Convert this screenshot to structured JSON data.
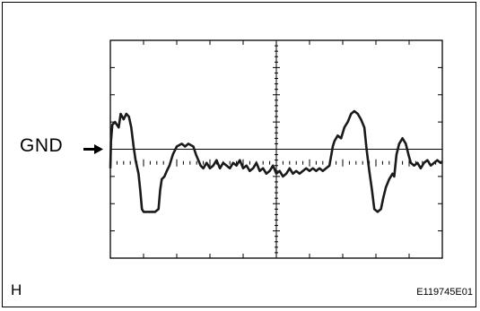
{
  "labels": {
    "ground": "GND",
    "corner": "H",
    "figure_code": "E119745E01"
  },
  "colors": {
    "trace": "#1a1a1a",
    "grid": "#000000",
    "frame": "#000000"
  },
  "scope": {
    "horizontal_divisions": 10,
    "vertical_divisions": 8,
    "subticks_per_division": 5,
    "ground_division_from_top": 4.5
  },
  "waveform": {
    "units": "divisions",
    "x_range": [
      0,
      10
    ],
    "y_note": "level relative to GND in vertical divisions (+ up)",
    "points": [
      [
        0.0,
        -0.2
      ],
      [
        0.02,
        0.8
      ],
      [
        0.06,
        1.4
      ],
      [
        0.14,
        1.5
      ],
      [
        0.25,
        1.3
      ],
      [
        0.31,
        1.8
      ],
      [
        0.4,
        1.6
      ],
      [
        0.48,
        1.8
      ],
      [
        0.56,
        1.7
      ],
      [
        0.63,
        1.3
      ],
      [
        0.7,
        0.6
      ],
      [
        0.76,
        0.1
      ],
      [
        0.85,
        -0.4
      ],
      [
        0.9,
        -1.0
      ],
      [
        0.95,
        -1.7
      ],
      [
        1.0,
        -1.8
      ],
      [
        1.1,
        -1.8
      ],
      [
        1.25,
        -1.8
      ],
      [
        1.35,
        -1.8
      ],
      [
        1.45,
        -1.7
      ],
      [
        1.5,
        -1.0
      ],
      [
        1.55,
        -0.6
      ],
      [
        1.63,
        -0.5
      ],
      [
        1.7,
        -0.3
      ],
      [
        1.78,
        -0.1
      ],
      [
        1.88,
        0.3
      ],
      [
        2.0,
        0.6
      ],
      [
        2.15,
        0.7
      ],
      [
        2.25,
        0.6
      ],
      [
        2.35,
        0.7
      ],
      [
        2.5,
        0.6
      ],
      [
        2.58,
        0.3
      ],
      [
        2.65,
        0.1
      ],
      [
        2.72,
        -0.1
      ],
      [
        2.8,
        -0.2
      ],
      [
        2.9,
        0.0
      ],
      [
        3.0,
        -0.2
      ],
      [
        3.1,
        -0.1
      ],
      [
        3.2,
        0.1
      ],
      [
        3.3,
        -0.2
      ],
      [
        3.4,
        0.0
      ],
      [
        3.5,
        -0.1
      ],
      [
        3.6,
        -0.2
      ],
      [
        3.7,
        0.0
      ],
      [
        3.8,
        -0.1
      ],
      [
        3.9,
        0.1
      ],
      [
        4.0,
        -0.2
      ],
      [
        4.1,
        -0.1
      ],
      [
        4.2,
        -0.3
      ],
      [
        4.3,
        -0.2
      ],
      [
        4.4,
        0.0
      ],
      [
        4.5,
        -0.3
      ],
      [
        4.6,
        -0.2
      ],
      [
        4.7,
        -0.4
      ],
      [
        4.8,
        -0.3
      ],
      [
        4.9,
        -0.1
      ],
      [
        5.0,
        -0.4
      ],
      [
        5.1,
        -0.3
      ],
      [
        5.2,
        -0.5
      ],
      [
        5.3,
        -0.4
      ],
      [
        5.4,
        -0.2
      ],
      [
        5.5,
        -0.4
      ],
      [
        5.6,
        -0.3
      ],
      [
        5.7,
        -0.4
      ],
      [
        5.8,
        -0.3
      ],
      [
        5.9,
        -0.2
      ],
      [
        6.0,
        -0.3
      ],
      [
        6.1,
        -0.2
      ],
      [
        6.2,
        -0.3
      ],
      [
        6.3,
        -0.2
      ],
      [
        6.4,
        -0.3
      ],
      [
        6.5,
        -0.2
      ],
      [
        6.6,
        -0.1
      ],
      [
        6.7,
        0.6
      ],
      [
        6.75,
        0.8
      ],
      [
        6.85,
        1.0
      ],
      [
        6.95,
        0.9
      ],
      [
        7.05,
        1.3
      ],
      [
        7.15,
        1.5
      ],
      [
        7.25,
        1.8
      ],
      [
        7.35,
        1.9
      ],
      [
        7.45,
        1.8
      ],
      [
        7.55,
        1.6
      ],
      [
        7.65,
        1.3
      ],
      [
        7.72,
        0.5
      ],
      [
        7.8,
        -0.3
      ],
      [
        7.88,
        -1.0
      ],
      [
        7.95,
        -1.7
      ],
      [
        8.05,
        -1.8
      ],
      [
        8.15,
        -1.7
      ],
      [
        8.22,
        -1.3
      ],
      [
        8.3,
        -0.9
      ],
      [
        8.4,
        -0.6
      ],
      [
        8.5,
        -0.4
      ],
      [
        8.55,
        -0.5
      ],
      [
        8.62,
        0.3
      ],
      [
        8.7,
        0.7
      ],
      [
        8.8,
        0.9
      ],
      [
        8.9,
        0.7
      ],
      [
        8.98,
        0.3
      ],
      [
        9.05,
        0.0
      ],
      [
        9.15,
        -0.1
      ],
      [
        9.25,
        0.0
      ],
      [
        9.35,
        -0.2
      ],
      [
        9.45,
        0.0
      ],
      [
        9.55,
        0.1
      ],
      [
        9.65,
        -0.1
      ],
      [
        9.75,
        0.0
      ],
      [
        9.85,
        0.1
      ],
      [
        9.95,
        0.0
      ],
      [
        10.0,
        0.05
      ]
    ]
  }
}
